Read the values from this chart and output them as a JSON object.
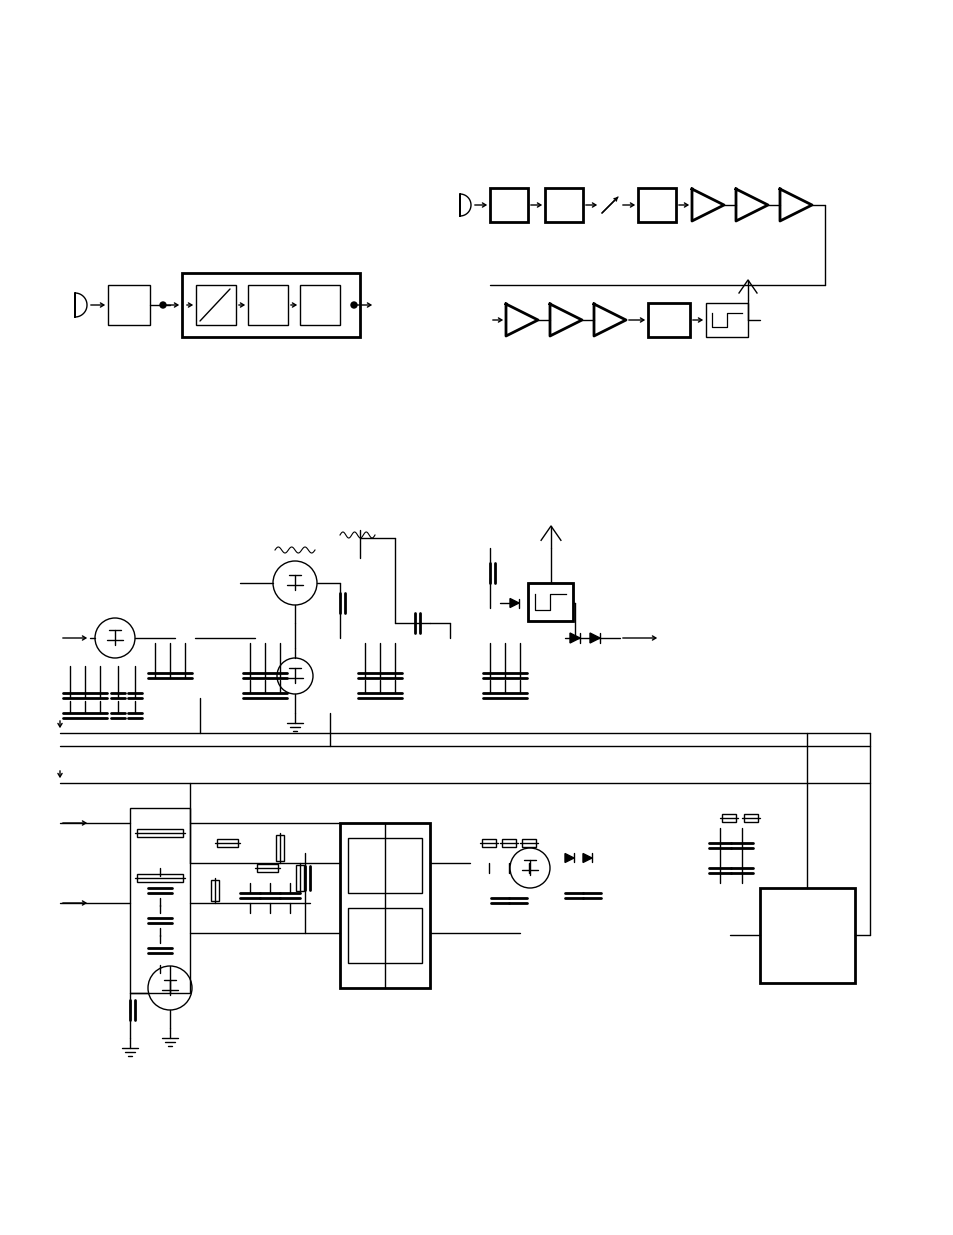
{
  "bg_color": "#ffffff",
  "line_color": "#000000",
  "fig_width": 9.54,
  "fig_height": 12.35,
  "dpi": 100
}
